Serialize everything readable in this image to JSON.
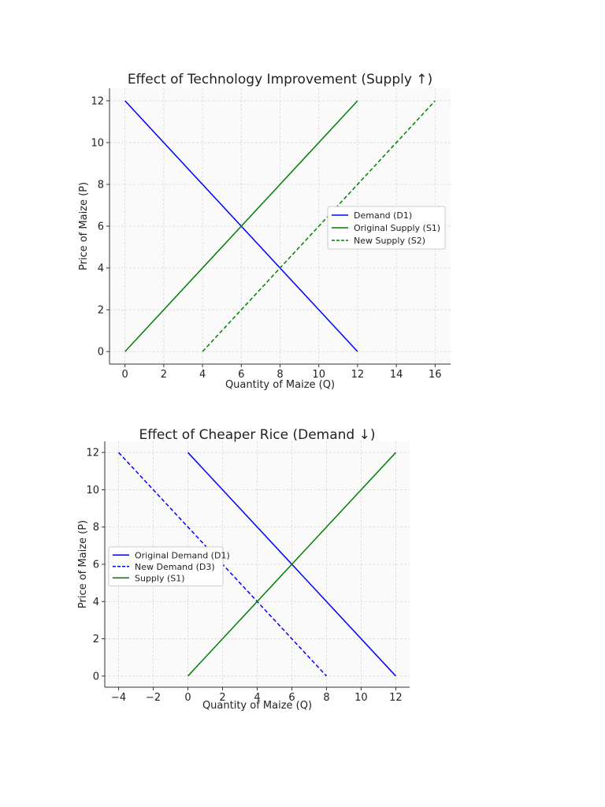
{
  "chart_data": [
    {
      "type": "line",
      "title": "Effect of Technology Improvement (Supply ↑)",
      "xlabel": "Quantity of Maize (Q)",
      "ylabel": "Price of Maize (P)",
      "xlim": [
        -0.8,
        16.8
      ],
      "ylim": [
        -0.6,
        12.6
      ],
      "xticks": [
        0,
        2,
        4,
        6,
        8,
        10,
        12,
        14,
        16
      ],
      "yticks": [
        0,
        2,
        4,
        6,
        8,
        10,
        12
      ],
      "grid": true,
      "legend": "center-right",
      "series": [
        {
          "name": "Demand (D1)",
          "color": "#0000ff",
          "style": "solid",
          "x": [
            0,
            12
          ],
          "y": [
            12,
            0
          ]
        },
        {
          "name": "Original Supply (S1)",
          "color": "#008000",
          "style": "solid",
          "x": [
            0,
            12
          ],
          "y": [
            0,
            12
          ]
        },
        {
          "name": "New Supply (S2)",
          "color": "#008000",
          "style": "dashed",
          "x": [
            4,
            16
          ],
          "y": [
            0,
            12
          ]
        }
      ]
    },
    {
      "type": "line",
      "title": "Effect of Cheaper Rice (Demand ↓)",
      "xlabel": "Quantity of Maize (Q)",
      "ylabel": "Price of Maize (P)",
      "xlim": [
        -4.8,
        12.8
      ],
      "ylim": [
        -0.6,
        12.6
      ],
      "xticks": [
        -4,
        -2,
        0,
        2,
        4,
        6,
        8,
        10,
        12
      ],
      "yticks": [
        0,
        2,
        4,
        6,
        8,
        10,
        12
      ],
      "grid": true,
      "legend": "center-left",
      "series": [
        {
          "name": "Original Demand (D1)",
          "color": "#0000ff",
          "style": "solid",
          "x": [
            0,
            12
          ],
          "y": [
            12,
            0
          ]
        },
        {
          "name": "New Demand (D3)",
          "color": "#0000ff",
          "style": "dashed",
          "x": [
            -4,
            8
          ],
          "y": [
            12,
            0
          ]
        },
        {
          "name": "Supply (S1)",
          "color": "#008000",
          "style": "solid",
          "x": [
            0,
            12
          ],
          "y": [
            0,
            12
          ]
        }
      ]
    }
  ]
}
